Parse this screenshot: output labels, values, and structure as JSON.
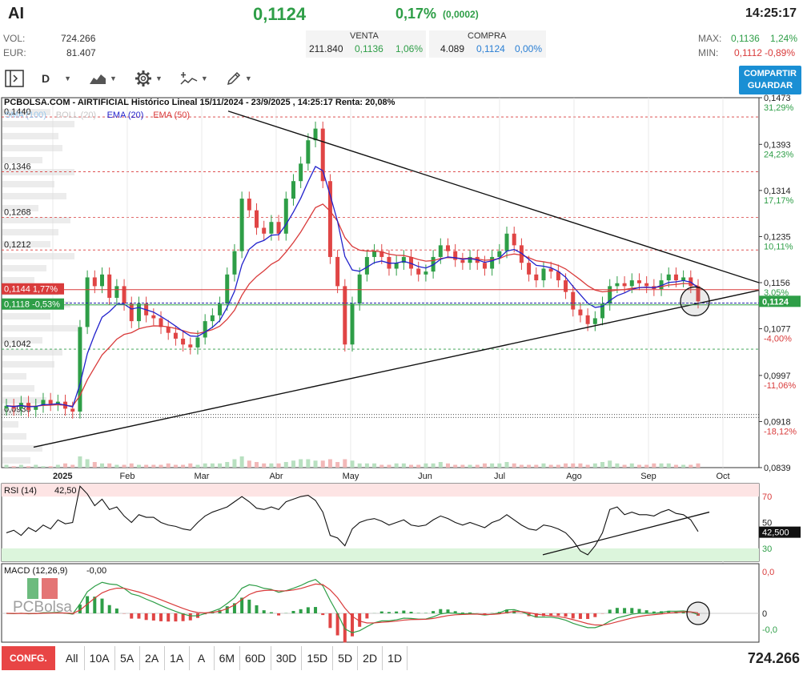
{
  "header": {
    "ticker": "AI",
    "price": "0,1124",
    "change_pct": "0,17%",
    "change_abs": "(0,0002)",
    "time": "14:25:17",
    "vol_label": "VOL:",
    "vol_value": "724.266",
    "eur_label": "EUR:",
    "eur_value": "81.407",
    "venta_label": "VENTA",
    "compra_label": "COMPRA",
    "venta_qty": "211.840",
    "venta_price": "0,1136",
    "venta_pct": "1,06%",
    "compra_qty": "4.089",
    "compra_price": "0,1124",
    "compra_pct": "0,00%",
    "max_label": "MAX:",
    "max_value": "0,1136",
    "max_pct": "1,24%",
    "min_label": "MIN:",
    "min_value": "0,1112",
    "min_pct": "-0,89%"
  },
  "toolbar": {
    "period": "D",
    "share_line1": "COMPARTIR",
    "share_line2": "GUARDAR",
    "icons": [
      "panel-toggle-icon",
      "chart-type-icon",
      "gear-icon",
      "indicators-icon",
      "drawing-tool-icon"
    ]
  },
  "chart_data": [
    {
      "type": "candlestick",
      "title": "PCBOLSA.COM - AIRTIFICIAL Histórico Lineal 15/11/2024 - 23/9/2025 , 14:25:17 Renta: 20,08%",
      "legend": [
        "SMA (100)",
        "BOLL (20)",
        "EMA (20)",
        "EMA (50)"
      ],
      "legend_colors": [
        "#9ac7ec",
        "#c8c8c8",
        "#2222cc",
        "#d93b3b"
      ],
      "x_ticks": [
        "2025",
        "Feb",
        "Mar",
        "Abr",
        "May",
        "Jun",
        "Jul",
        "Ago",
        "Sep",
        "Oct"
      ],
      "y_ticks": [
        {
          "v": "0,1473",
          "p": "31,29%"
        },
        {
          "v": "0,1393",
          "p": "24,23%"
        },
        {
          "v": "0,1314",
          "p": "17,17%"
        },
        {
          "v": "0,1235",
          "p": "10,11%"
        },
        {
          "v": "0,1156",
          "p": "3,05%"
        },
        {
          "v": "0,1077",
          "p": "-4,00%"
        },
        {
          "v": "0,0997",
          "p": "-11,06%"
        },
        {
          "v": "0,0918",
          "p": "-18,12%"
        },
        {
          "v": "0,0839",
          "p": ""
        }
      ],
      "ylim": [
        0.0839,
        0.1473
      ],
      "levels": [
        "0,1440",
        "0,1346",
        "0,1268",
        "0,1212",
        "0,1042",
        "0,0930"
      ],
      "left_tags": [
        {
          "text": "0,1144  1,77%",
          "color": "#d93b3b"
        },
        {
          "text": "0,1118  -0,53%",
          "color": "#2e9e47"
        }
      ],
      "last_price_tag": "0,1124",
      "close": [
        0.0945,
        0.094,
        0.095,
        0.0938,
        0.0945,
        0.0955,
        0.0948,
        0.0952,
        0.094,
        0.0935,
        0.108,
        0.1165,
        0.115,
        0.117,
        0.113,
        0.115,
        0.112,
        0.109,
        0.112,
        0.11,
        0.1095,
        0.108,
        0.107,
        0.106,
        0.105,
        0.1045,
        0.1062,
        0.109,
        0.11,
        0.112,
        0.117,
        0.121,
        0.13,
        0.128,
        0.125,
        0.124,
        0.126,
        0.124,
        0.13,
        0.133,
        0.136,
        0.14,
        0.142,
        0.133,
        0.12,
        0.115,
        0.105,
        0.112,
        0.117,
        0.12,
        0.121,
        0.12,
        0.118,
        0.119,
        0.12,
        0.118,
        0.117,
        0.1175,
        0.12,
        0.122,
        0.121,
        0.1195,
        0.119,
        0.12,
        0.119,
        0.118,
        0.12,
        0.121,
        0.124,
        0.122,
        0.119,
        0.117,
        0.116,
        0.118,
        0.1175,
        0.116,
        0.114,
        0.111,
        0.11,
        0.1085,
        0.1095,
        0.112,
        0.115,
        0.1155,
        0.115,
        0.116,
        0.1155,
        0.115,
        0.1145,
        0.116,
        0.117,
        0.116,
        0.1165,
        0.115,
        0.1124
      ],
      "volume": [
        2,
        1,
        2,
        1,
        2,
        1,
        1,
        2,
        3,
        2,
        8,
        6,
        4,
        3,
        3,
        2,
        2,
        3,
        2,
        2,
        2,
        2,
        3,
        2,
        2,
        3,
        2,
        3,
        3,
        3,
        4,
        6,
        8,
        5,
        4,
        3,
        3,
        3,
        4,
        5,
        6,
        6,
        5,
        5,
        6,
        4,
        6,
        5,
        3,
        3,
        3,
        2,
        2,
        3,
        3,
        2,
        2,
        3,
        3,
        4,
        3,
        2,
        2,
        2,
        2,
        3,
        3,
        3,
        4,
        3,
        2,
        2,
        2,
        3,
        2,
        2,
        3,
        3,
        3,
        2,
        3,
        4,
        5,
        3,
        2,
        3,
        2,
        2,
        3,
        3,
        3,
        2,
        2,
        2,
        3
      ]
    },
    {
      "type": "line",
      "title": "RSI (14)",
      "current": "42,50",
      "current_tag": "42,500",
      "y_ticks": [
        "70",
        "50",
        "30"
      ],
      "ylim": [
        20,
        80
      ],
      "values": [
        42,
        44,
        40,
        46,
        43,
        48,
        45,
        52,
        49,
        50,
        78,
        72,
        63,
        68,
        60,
        62,
        55,
        50,
        56,
        54,
        54,
        50,
        48,
        47,
        45,
        44,
        50,
        55,
        58,
        60,
        62,
        66,
        70,
        66,
        61,
        60,
        62,
        60,
        66,
        68,
        70,
        71,
        67,
        58,
        40,
        38,
        32,
        45,
        50,
        52,
        53,
        51,
        48,
        50,
        52,
        48,
        47,
        48,
        52,
        55,
        53,
        50,
        48,
        50,
        48,
        46,
        50,
        52,
        56,
        52,
        48,
        45,
        44,
        48,
        47,
        45,
        42,
        36,
        28,
        25,
        32,
        42,
        60,
        62,
        56,
        58,
        56,
        56,
        55,
        58,
        60,
        57,
        56,
        52,
        43
      ]
    },
    {
      "type": "bar",
      "title": "MACD (12,26,9)",
      "current": "-0,00",
      "y_ticks": [
        "0,0",
        "0",
        "-0,0"
      ]
    }
  ],
  "ranges": [
    "All",
    "10A",
    "5A",
    "2A",
    "1A",
    "A",
    "6M",
    "60D",
    "30D",
    "15D",
    "5D",
    "2D",
    "1D"
  ],
  "config_label": "CONFG.",
  "volume_total": "724.266",
  "watermark": "PCBolsa"
}
